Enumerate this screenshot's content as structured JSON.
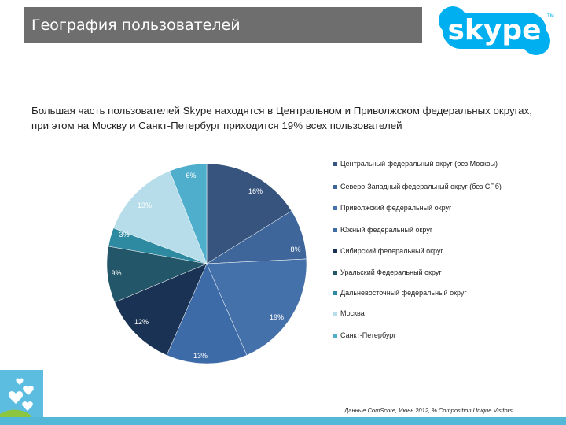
{
  "header": {
    "title": "География пользователей",
    "logo_text": "skype",
    "logo_color": "#00aff0"
  },
  "description": "Большая часть пользователей Skype находятся в Центральном и Приволжском  федеральных округах, при этом на Москву и Санкт-Петербург приходится 19% всех пользователей",
  "source_note": "Данные ComScore, Июнь 2012, % Composition Unique Visitors",
  "chart_data": {
    "type": "pie",
    "title": "",
    "start": "12 o'clock",
    "direction": "clockwise",
    "slices": [
      {
        "label": "Центральный федеральный округ (без Москвы)",
        "value": 16,
        "display": "16%",
        "color": "#36547e"
      },
      {
        "label": "Северо-Западный федеральный округ (без СПб)",
        "value": 8,
        "display": "8%",
        "color": "#3e669a"
      },
      {
        "label": "Приволжский федеральный округ",
        "value": 19,
        "display": "19%",
        "color": "#4571aa"
      },
      {
        "label": "Южный федеральный округ",
        "value": 13,
        "display": "13%",
        "color": "#3d6ba7"
      },
      {
        "label": "Сибирский федеральный округ",
        "value": 12,
        "display": "12%",
        "color": "#1a3354"
      },
      {
        "label": "Уральский Федеральный округ",
        "value": 9,
        "display": "9%",
        "color": "#235669"
      },
      {
        "label": "Дальневосточный федеральный округ",
        "value": 3,
        "display": "3%",
        "color": "#2e8aa1"
      },
      {
        "label": "Москва",
        "value": 13,
        "display": "13%",
        "color": "#b6dde9"
      },
      {
        "label": "Санкт-Петербург",
        "value": 6,
        "display": "6%",
        "color": "#4faecb"
      }
    ]
  }
}
